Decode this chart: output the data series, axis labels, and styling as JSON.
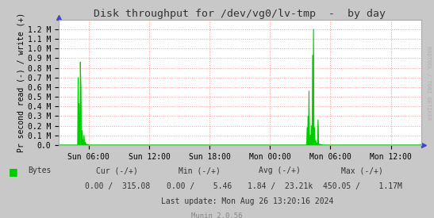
{
  "title": "Disk throughput for /dev/vg0/lv-tmp  -  by day",
  "ylabel": "Pr second read (-) / write (+)",
  "background_color": "#c8c8c8",
  "plot_background": "#ffffff",
  "grid_color": "#ff9999",
  "line_color": "#00cc00",
  "ylim": [
    0,
    1300000
  ],
  "yticks": [
    0,
    100000,
    200000,
    300000,
    400000,
    500000,
    600000,
    700000,
    800000,
    900000,
    1000000,
    1100000,
    1200000
  ],
  "ytick_labels": [
    "0.0",
    "0.1 M",
    "0.2 M",
    "0.3 M",
    "0.4 M",
    "0.5 M",
    "0.6 M",
    "0.7 M",
    "0.8 M",
    "0.9 M",
    "1.0 M",
    "1.1 M",
    "1.2 M"
  ],
  "xtick_positions": [
    0.0833,
    0.25,
    0.4167,
    0.5833,
    0.75,
    0.9167
  ],
  "xtick_labels": [
    "Sun 06:00",
    "Sun 12:00",
    "Sun 18:00",
    "Mon 00:00",
    "Mon 06:00",
    "Mon 12:00"
  ],
  "rrdtool_text": "RRDTOOL / TOBI OETIKER",
  "legend_label": "Bytes",
  "legend_color": "#00cc00",
  "footer_line1": "          Cur (-/+)                  Min (-/+)            Avg (-/+)                 Max (-/+)",
  "footer_line2": "   0.00 /  315.08          0.00 /    5.46     1.84 /  23.21k    450.05 /    1.17M",
  "footer_line3": "                        Last update: Mon Aug 26 13:20:16 2024",
  "munin_text": "Munin 2.0.56",
  "spike1_x": [
    0.054,
    0.057,
    0.06,
    0.062,
    0.065,
    0.068,
    0.071,
    0.074,
    0.077,
    0.08,
    0.083,
    0.086
  ],
  "spike1_y": [
    700000,
    430000,
    860000,
    580000,
    150000,
    50000,
    100000,
    30000,
    10000,
    5000,
    2000,
    1000
  ],
  "spike2_x": [
    0.685,
    0.688,
    0.691,
    0.694,
    0.697,
    0.7,
    0.703,
    0.706,
    0.709,
    0.712,
    0.715,
    0.718,
    0.721,
    0.724,
    0.727
  ],
  "spike2_y": [
    180000,
    300000,
    560000,
    100000,
    200000,
    930000,
    1200000,
    180000,
    50000,
    20000,
    260000,
    10000,
    10000,
    5000,
    2000
  ]
}
